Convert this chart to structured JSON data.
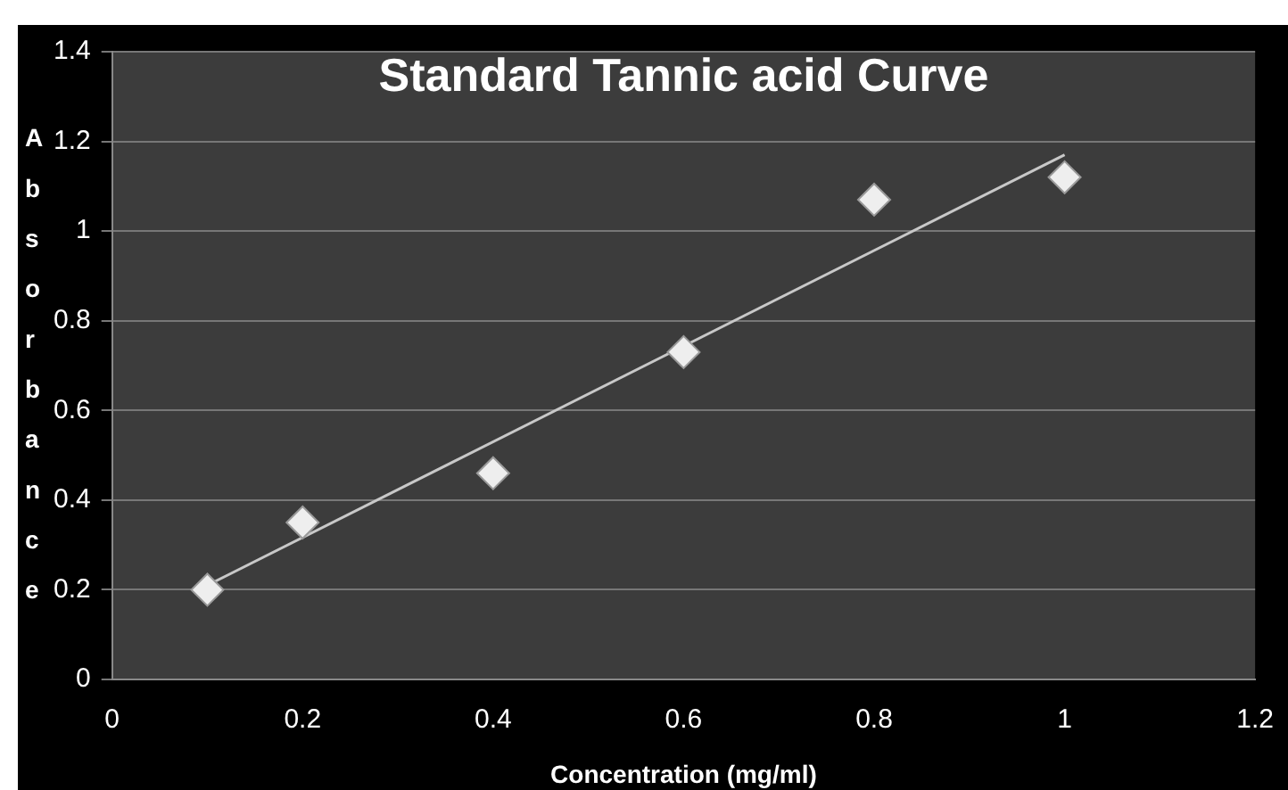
{
  "chart_data": {
    "type": "scatter",
    "title": "Standard Tannic acid Curve",
    "xlabel": "Concentration (mg/ml)",
    "ylabel": "Absorbance",
    "x": [
      0.1,
      0.2,
      0.4,
      0.6,
      0.8,
      1.0
    ],
    "series": [
      {
        "color": "#eeeeee",
        "values": [
          0.2,
          0.35,
          0.46,
          0.73,
          1.07,
          1.12
        ],
        "marker": "diamond"
      },
      {
        "type": "line",
        "color": "#c8c8c8",
        "x": [
          0.1,
          1.0
        ],
        "values": [
          0.21,
          1.17
        ],
        "marker": "none",
        "line_style": "solid"
      }
    ],
    "xlim": [
      0,
      1.2
    ],
    "xticks": [
      0,
      0.2,
      0.4,
      0.6,
      0.8,
      1,
      1.2
    ],
    "ylim": [
      0,
      1.4
    ],
    "yticks": [
      0,
      0.2,
      0.4,
      0.6,
      0.8,
      1,
      1.2,
      1.4
    ],
    "grid": "y",
    "legend": false
  }
}
